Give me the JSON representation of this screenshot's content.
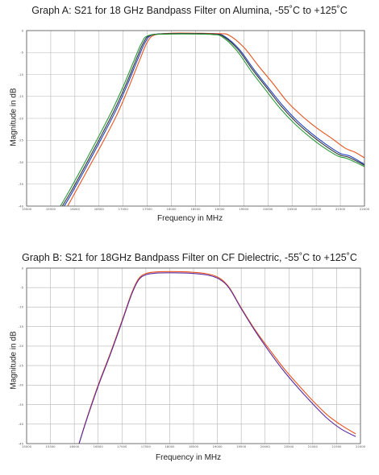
{
  "chart_data": [
    {
      "type": "line",
      "title": "Graph A: S21 for 18 GHz Bandpass Filter on Alumina, -55˚C to +125˚C",
      "xlabel": "Frequency in MHz",
      "ylabel": "Magnitude in dB",
      "x_ticks": [
        "15000",
        "15500",
        "16000",
        "16500",
        "17000",
        "17500",
        "18000",
        "18500",
        "19000",
        "19500",
        "20000",
        "20500",
        "21000",
        "21500",
        "22000"
      ],
      "y_ticks": [
        "0",
        "-5",
        "-10",
        "-15",
        "-20",
        "-25",
        "-30",
        "-35",
        "-40"
      ],
      "xlim": [
        15000,
        22000
      ],
      "ylim": [
        -40,
        0
      ],
      "grid": true,
      "series": [
        {
          "color": "#e8541e",
          "x": [
            15850,
            16000,
            16300,
            16600,
            16900,
            17150,
            17350,
            17500,
            17650,
            18000,
            18500,
            19000,
            19200,
            19500,
            19800,
            20100,
            20400,
            20700,
            21000,
            21300,
            21600,
            21800,
            22000
          ],
          "y": [
            -40,
            -37,
            -31,
            -25,
            -18.5,
            -12,
            -6.5,
            -2.6,
            -1.0,
            -0.6,
            -0.6,
            -0.7,
            -1.1,
            -3.8,
            -8.0,
            -12.0,
            -16.2,
            -19.4,
            -22.1,
            -24.4,
            -26.8,
            -27.7,
            -29
          ]
        },
        {
          "color": "#2040c0",
          "x": [
            15780,
            15950,
            16250,
            16550,
            16850,
            17100,
            17300,
            17450,
            17600,
            18000,
            18500,
            18900,
            19100,
            19400,
            19700,
            20000,
            20300,
            20600,
            20900,
            21200,
            21500,
            21700,
            22000
          ],
          "y": [
            -40,
            -36.8,
            -30.8,
            -24.6,
            -18.2,
            -12,
            -6.6,
            -2.8,
            -1.0,
            -0.7,
            -0.7,
            -0.8,
            -1.3,
            -4.2,
            -8.7,
            -12.9,
            -17.0,
            -20.5,
            -23.4,
            -25.9,
            -28.0,
            -28.6,
            -30.5
          ]
        },
        {
          "color": "#333333",
          "x": [
            15740,
            15920,
            16220,
            16520,
            16820,
            17070,
            17270,
            17420,
            17570,
            18000,
            18500,
            18880,
            19080,
            19380,
            19680,
            19980,
            20280,
            20580,
            20880,
            21180,
            21480,
            21680,
            22000
          ],
          "y": [
            -40,
            -36.7,
            -30.7,
            -24.5,
            -18.1,
            -12,
            -6.6,
            -2.8,
            -1.0,
            -0.7,
            -0.7,
            -0.8,
            -1.35,
            -4.3,
            -8.9,
            -13.1,
            -17.3,
            -20.8,
            -23.7,
            -26.2,
            -28.3,
            -28.9,
            -30.7
          ]
        },
        {
          "color": "#2a9a3a",
          "x": [
            15700,
            15880,
            16180,
            16480,
            16780,
            17030,
            17230,
            17380,
            17530,
            18000,
            18500,
            18850,
            19050,
            19350,
            19650,
            19950,
            20250,
            20550,
            20850,
            21150,
            21450,
            21650,
            22000
          ],
          "y": [
            -40,
            -36.6,
            -30.6,
            -24.4,
            -18.0,
            -12,
            -6.7,
            -2.9,
            -1.1,
            -0.8,
            -0.8,
            -0.9,
            -1.4,
            -4.5,
            -9.2,
            -13.5,
            -17.7,
            -21.2,
            -24.1,
            -26.6,
            -28.6,
            -29.2,
            -31.0
          ]
        }
      ]
    },
    {
      "type": "line",
      "title": "Graph B: S21 for 18GHz Bandpass Filter on CF Dielectric, -55˚C to +125˚C",
      "xlabel": "Frequency in MHz",
      "ylabel": "Magnitude in dB",
      "x_ticks": [
        "15000",
        "15500",
        "16000",
        "16500",
        "17000",
        "17500",
        "18000",
        "18500",
        "19000",
        "19500",
        "20000",
        "20500",
        "21000",
        "21500",
        "22000"
      ],
      "y_ticks": [
        "0",
        "-5",
        "-10",
        "-15",
        "-20",
        "-25",
        "-30",
        "-35",
        "-40",
        "-45"
      ],
      "xlim": [
        15000,
        22000
      ],
      "ylim": [
        -45,
        0
      ],
      "grid": true,
      "series": [
        {
          "color": "#e8541e",
          "x": [
            16100,
            16250,
            16500,
            16750,
            17000,
            17200,
            17350,
            17500,
            17700,
            18000,
            18400,
            18800,
            19050,
            19250,
            19500,
            19800,
            20100,
            20400,
            20700,
            21000,
            21300,
            21600,
            21900
          ],
          "y": [
            -45,
            -39,
            -30,
            -22,
            -13.5,
            -6.5,
            -2.7,
            -1.4,
            -1.0,
            -0.9,
            -1.0,
            -1.5,
            -2.6,
            -5.0,
            -10.2,
            -16.0,
            -21.0,
            -25.8,
            -30.0,
            -34.0,
            -37.6,
            -40.3,
            -42.5
          ]
        },
        {
          "color": "#5a2aa0",
          "x": [
            16100,
            16250,
            16500,
            16750,
            17000,
            17200,
            17350,
            17500,
            17700,
            18000,
            18400,
            18800,
            19050,
            19250,
            19500,
            19800,
            20100,
            20400,
            20700,
            21000,
            21300,
            21600,
            21900
          ],
          "y": [
            -45,
            -39.2,
            -30.3,
            -22.3,
            -13.8,
            -6.8,
            -3.0,
            -1.7,
            -1.3,
            -1.2,
            -1.3,
            -1.8,
            -2.9,
            -5.2,
            -10.4,
            -16.3,
            -21.6,
            -26.5,
            -30.8,
            -34.8,
            -38.5,
            -41.3,
            -43.2
          ]
        }
      ]
    }
  ]
}
